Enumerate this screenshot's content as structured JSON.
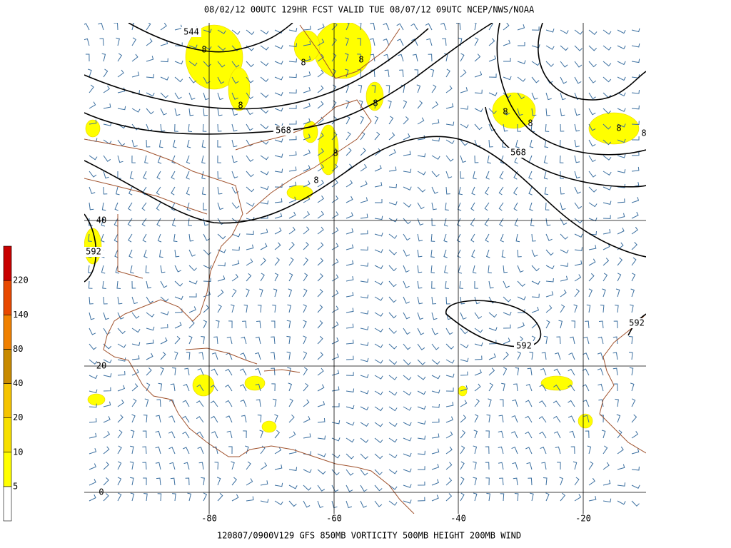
{
  "header": {
    "title": "08/02/12 00UTC  129HR  FCST VALID TUE 08/07/12 09UTC  NCEP/NWS/NOAA"
  },
  "footer": {
    "caption": "120807/0900V129 GFS  850MB VORTICITY 500MB HEIGHT 200MB WIND"
  },
  "colorbar": {
    "labels": [
      "5",
      "10",
      "20",
      "40",
      "80",
      "140",
      "220"
    ],
    "colors": [
      "#ffffff",
      "#ffff00",
      "#f7e000",
      "#f5c400",
      "#c88a00",
      "#f08000",
      "#e84800",
      "#c80000"
    ]
  },
  "map": {
    "lat_labels": [
      "40",
      "20",
      "0"
    ],
    "lon_labels": [
      "-80",
      "-60",
      "-40",
      "-20"
    ],
    "height_labels": [
      "544",
      "568",
      "568",
      "592",
      "592",
      "592"
    ],
    "vorticity_labels": [
      "8",
      "8",
      "8",
      "8",
      "8",
      "8",
      "8",
      "8",
      "8",
      "8",
      "8"
    ]
  }
}
